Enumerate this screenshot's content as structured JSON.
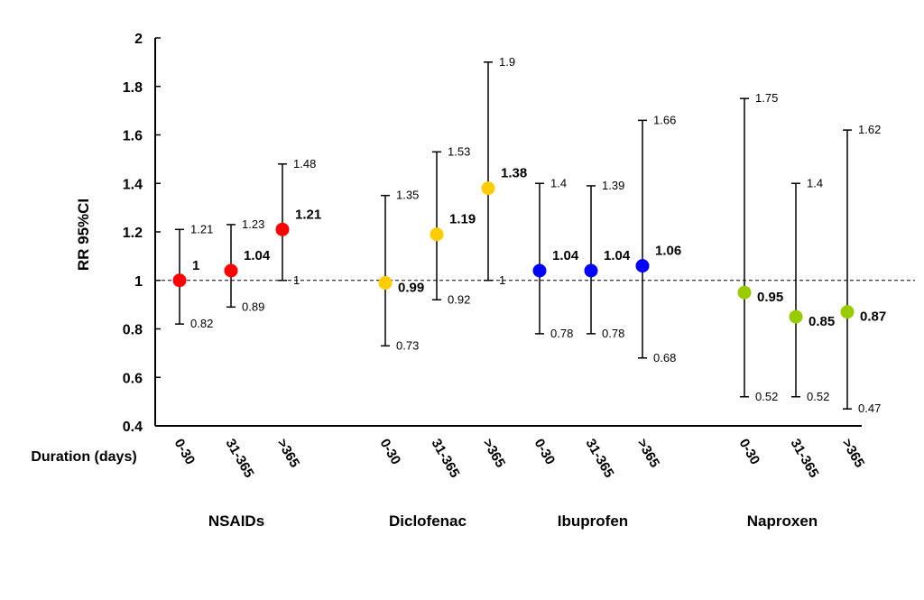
{
  "chart_data": {
    "type": "scatter",
    "title": "",
    "ylabel": "RR 95%CI",
    "xlabel": "Duration (days)",
    "ylim": [
      0.4,
      2
    ],
    "yticks": [
      "0.4",
      "0.6",
      "0.8",
      "1",
      "1.2",
      "1.4",
      "1.6",
      "1.8",
      "2"
    ],
    "reference_line": 1,
    "grid": false,
    "groups": [
      {
        "name": "NSAIDs",
        "color": "#ff0000",
        "points": [
          {
            "duration": "0-30",
            "rr": 1,
            "lower": 0.82,
            "upper": 1.21,
            "rr_label": "1",
            "lower_label": "0.82",
            "upper_label": "1.21"
          },
          {
            "duration": "31-365",
            "rr": 1.04,
            "lower": 0.89,
            "upper": 1.23,
            "rr_label": "1.04",
            "lower_label": "0.89",
            "upper_label": "1.23"
          },
          {
            "duration": ">365",
            "rr": 1.21,
            "lower": 1,
            "upper": 1.48,
            "rr_label": "1.21",
            "lower_label": "1",
            "upper_label": "1.48"
          }
        ]
      },
      {
        "name": "Diclofenac",
        "color": "#ffcc00",
        "points": [
          {
            "duration": "0-30",
            "rr": 0.99,
            "lower": 0.73,
            "upper": 1.35,
            "rr_label": "0.99",
            "lower_label": "0.73",
            "upper_label": "1.35"
          },
          {
            "duration": "31-365",
            "rr": 1.19,
            "lower": 0.92,
            "upper": 1.53,
            "rr_label": "1.19",
            "lower_label": "0.92",
            "upper_label": "1.53"
          },
          {
            "duration": ">365",
            "rr": 1.38,
            "lower": 1,
            "upper": 1.9,
            "rr_label": "1.38",
            "lower_label": "1",
            "upper_label": "1.9"
          }
        ]
      },
      {
        "name": "Ibuprofen",
        "color": "#0000ff",
        "points": [
          {
            "duration": "0-30",
            "rr": 1.04,
            "lower": 0.78,
            "upper": 1.4,
            "rr_label": "1.04",
            "lower_label": "0.78",
            "upper_label": "1.4"
          },
          {
            "duration": "31-365",
            "rr": 1.04,
            "lower": 0.78,
            "upper": 1.39,
            "rr_label": "1.04",
            "lower_label": "0.78",
            "upper_label": "1.39"
          },
          {
            "duration": ">365",
            "rr": 1.06,
            "lower": 0.68,
            "upper": 1.66,
            "rr_label": "1.06",
            "lower_label": "0.68",
            "upper_label": "1.66"
          }
        ]
      },
      {
        "name": "Naproxen",
        "color": "#99cc00",
        "points": [
          {
            "duration": "0-30",
            "rr": 0.95,
            "lower": 0.52,
            "upper": 1.75,
            "rr_label": "0.95",
            "lower_label": "0.52",
            "upper_label": "1.75"
          },
          {
            "duration": "31-365",
            "rr": 0.85,
            "lower": 0.52,
            "upper": 1.4,
            "rr_label": "0.85",
            "lower_label": "0.52",
            "upper_label": "1.4"
          },
          {
            "duration": ">365",
            "rr": 0.87,
            "lower": 0.47,
            "upper": 1.62,
            "rr_label": "0.87",
            "lower_label": "0.47",
            "upper_label": "1.62"
          }
        ]
      }
    ]
  }
}
